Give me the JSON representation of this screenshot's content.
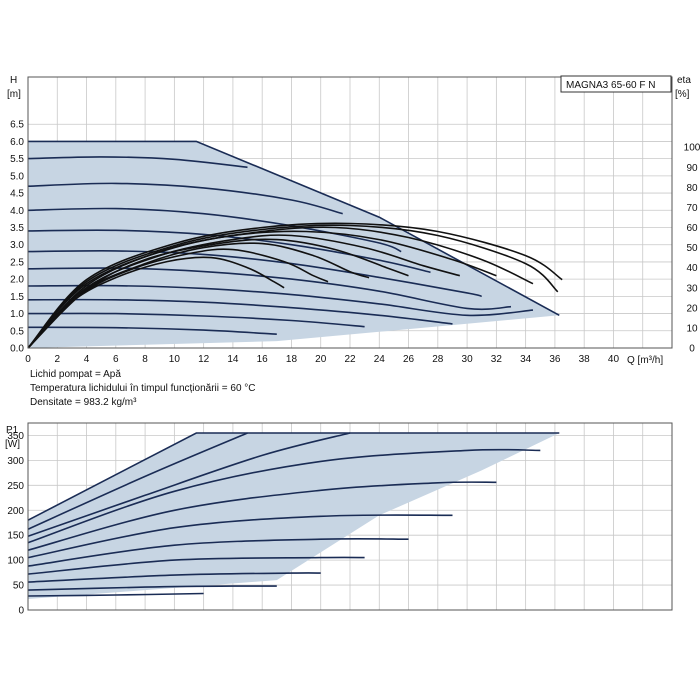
{
  "model_label": "MAGNA3 65-60 F N",
  "notes": [
    "Lichid pompat = Apă",
    "Temperatura lichidului în timpul funcționării = 60 °C",
    "Densitate = 983.2 kg/m³"
  ],
  "colors": {
    "region_fill": "#c7d5e3",
    "curve": "#1a2c55",
    "efficiency_curve": "#111111",
    "grid": "#c8c8c8"
  },
  "chart_data": [
    {
      "type": "line",
      "title": "",
      "xlabel": "Q [m³/h]",
      "ylabel_line1": "H",
      "ylabel_line2": "[m]",
      "y2label_line1": "eta",
      "y2label_line2": "[%]",
      "xlim": [
        0,
        44
      ],
      "ylim": [
        0,
        7.0
      ],
      "y2lim": [
        0,
        120
      ],
      "x_ticks": [
        0,
        2,
        4,
        6,
        8,
        10,
        12,
        14,
        16,
        18,
        20,
        22,
        24,
        26,
        28,
        30,
        32,
        34,
        36,
        38,
        40
      ],
      "x_tick_labels": [
        "0",
        "2",
        "4",
        "6",
        "8",
        "10",
        "12",
        "14",
        "16",
        "18",
        "20",
        "22",
        "24",
        "26",
        "28",
        "30",
        "32",
        "34",
        "36",
        "38",
        "40"
      ],
      "y_ticks": [
        0,
        0.5,
        1.0,
        1.5,
        2.0,
        2.5,
        3.0,
        3.5,
        4.0,
        4.5,
        5.0,
        5.5,
        6.0,
        6.5
      ],
      "y_tick_labels": [
        "0.0",
        "0.5",
        "1.0",
        "1.5",
        "2.0",
        "2.5",
        "3.0",
        "3.5",
        "4.0",
        "4.5",
        "5.0",
        "5.5",
        "6.0",
        "6.5"
      ],
      "y2_ticks": [
        0,
        10,
        20,
        30,
        40,
        50,
        60,
        70,
        80,
        90,
        100
      ],
      "y2_tick_labels": [
        "0",
        "10",
        "20",
        "30",
        "40",
        "50",
        "60",
        "70",
        "80",
        "90",
        "100"
      ],
      "operating_region": [
        [
          0,
          6.0
        ],
        [
          11.5,
          6.0
        ],
        [
          24,
          3.8
        ],
        [
          36.3,
          0.95
        ],
        [
          26,
          0.55
        ],
        [
          17,
          0.2
        ],
        [
          0,
          0
        ]
      ],
      "series": [
        {
          "values": [
            [
              0,
              6.0
            ],
            [
              11.5,
              6.0
            ],
            [
              24,
              3.8
            ],
            [
              36.3,
              0.95
            ]
          ]
        },
        {
          "values": [
            [
              0,
              5.5
            ],
            [
              5,
              5.55
            ],
            [
              10,
              5.48
            ],
            [
              15,
              5.25
            ]
          ]
        },
        {
          "values": [
            [
              0,
              4.7
            ],
            [
              6,
              4.78
            ],
            [
              12,
              4.65
            ],
            [
              18,
              4.3
            ],
            [
              21.5,
              3.9
            ]
          ]
        },
        {
          "values": [
            [
              0,
              4.0
            ],
            [
              6,
              4.05
            ],
            [
              12,
              3.9
            ],
            [
              18,
              3.55
            ],
            [
              24,
              3.05
            ],
            [
              25.5,
              2.8
            ]
          ]
        },
        {
          "values": [
            [
              0,
              3.4
            ],
            [
              6,
              3.42
            ],
            [
              12,
              3.3
            ],
            [
              18,
              3.0
            ],
            [
              24,
              2.55
            ],
            [
              27.5,
              2.2
            ]
          ]
        },
        {
          "values": [
            [
              0,
              2.8
            ],
            [
              6,
              2.82
            ],
            [
              12,
              2.72
            ],
            [
              18,
              2.45
            ],
            [
              24,
              2.05
            ],
            [
              30,
              1.6
            ],
            [
              31,
              1.5
            ]
          ]
        },
        {
          "values": [
            [
              0,
              2.3
            ],
            [
              6,
              2.32
            ],
            [
              12,
              2.22
            ],
            [
              18,
              2.0
            ],
            [
              24,
              1.65
            ],
            [
              30,
              1.15
            ],
            [
              33,
              1.2
            ]
          ]
        },
        {
          "values": [
            [
              0,
              1.8
            ],
            [
              6,
              1.81
            ],
            [
              12,
              1.73
            ],
            [
              18,
              1.55
            ],
            [
              24,
              1.28
            ],
            [
              30,
              0.95
            ],
            [
              34.5,
              1.1
            ]
          ]
        },
        {
          "values": [
            [
              0,
              1.4
            ],
            [
              6,
              1.4
            ],
            [
              12,
              1.33
            ],
            [
              18,
              1.17
            ],
            [
              24,
              0.95
            ],
            [
              29,
              0.7
            ]
          ]
        },
        {
          "values": [
            [
              0,
              1.0
            ],
            [
              6,
              1.0
            ],
            [
              12,
              0.93
            ],
            [
              18,
              0.8
            ],
            [
              23,
              0.62
            ]
          ]
        },
        {
          "values": [
            [
              0,
              0.6
            ],
            [
              6,
              0.59
            ],
            [
              12,
              0.52
            ],
            [
              17,
              0.4
            ]
          ]
        }
      ],
      "efficiency_series": [
        {
          "values": [
            [
              0,
              0
            ],
            [
              4,
              34
            ],
            [
              10,
              52
            ],
            [
              16,
              60
            ],
            [
              22,
              62
            ],
            [
              28,
              58
            ],
            [
              34,
              46
            ],
            [
              36.5,
              34
            ]
          ]
        },
        {
          "values": [
            [
              0,
              0
            ],
            [
              4,
              33
            ],
            [
              10,
              51
            ],
            [
              16,
              59
            ],
            [
              22,
              61
            ],
            [
              28,
              56
            ],
            [
              34,
              42
            ],
            [
              36.2,
              28
            ]
          ]
        },
        {
          "values": [
            [
              0,
              0
            ],
            [
              4,
              32
            ],
            [
              10,
              50
            ],
            [
              16,
              58
            ],
            [
              21,
              60
            ],
            [
              26,
              55
            ],
            [
              31,
              44
            ],
            [
              34.5,
              32
            ]
          ]
        },
        {
          "values": [
            [
              0,
              0
            ],
            [
              4,
              31
            ],
            [
              9,
              48
            ],
            [
              14,
              56
            ],
            [
              19,
              58
            ],
            [
              24,
              54
            ],
            [
              29,
              44
            ],
            [
              32,
              36
            ]
          ]
        },
        {
          "values": [
            [
              0,
              0
            ],
            [
              4,
              30
            ],
            [
              9,
              46
            ],
            [
              14,
              54
            ],
            [
              18,
              56
            ],
            [
              23,
              50
            ],
            [
              27,
              41
            ],
            [
              29.5,
              36
            ]
          ]
        },
        {
          "values": [
            [
              0,
              0
            ],
            [
              4,
              29
            ],
            [
              8,
              44
            ],
            [
              13,
              52
            ],
            [
              17,
              54
            ],
            [
              21,
              49
            ],
            [
              24.5,
              40
            ],
            [
              26,
              36
            ]
          ]
        },
        {
          "values": [
            [
              0,
              0
            ],
            [
              3.5,
              27
            ],
            [
              8,
              42
            ],
            [
              12,
              50
            ],
            [
              16,
              52
            ],
            [
              19.5,
              46
            ],
            [
              22,
              38
            ],
            [
              23.3,
              35
            ]
          ]
        },
        {
          "values": [
            [
              0,
              0
            ],
            [
              3.5,
              26
            ],
            [
              7,
              39
            ],
            [
              11,
              47
            ],
            [
              14,
              49
            ],
            [
              17.5,
              43
            ],
            [
              19.5,
              36
            ],
            [
              20.5,
              33
            ]
          ]
        },
        {
          "values": [
            [
              0,
              0
            ],
            [
              3,
              23
            ],
            [
              6,
              35
            ],
            [
              9.5,
              43
            ],
            [
              12.5,
              45
            ],
            [
              15,
              40
            ],
            [
              16.8,
              33
            ],
            [
              17.5,
              30
            ]
          ]
        }
      ]
    },
    {
      "type": "line",
      "title": "",
      "xlabel": "",
      "ylabel_line1": "P1",
      "ylabel_line2": "[W]",
      "xlim": [
        0,
        44
      ],
      "ylim": [
        0,
        375
      ],
      "y_ticks": [
        0,
        50,
        100,
        150,
        200,
        250,
        300,
        350
      ],
      "y_tick_labels": [
        "0",
        "50",
        "100",
        "150",
        "200",
        "250",
        "300",
        "350"
      ],
      "operating_region": [
        [
          0,
          180
        ],
        [
          11.5,
          355
        ],
        [
          36.3,
          355
        ],
        [
          31,
          280
        ],
        [
          24,
          190
        ],
        [
          17,
          60
        ],
        [
          0,
          22
        ]
      ],
      "series": [
        {
          "values": [
            [
              0,
              180
            ],
            [
              11.5,
              355
            ],
            [
              36.3,
              355
            ]
          ]
        },
        {
          "values": [
            [
              0,
              162
            ],
            [
              8,
              268
            ],
            [
              15,
              355
            ]
          ]
        },
        {
          "values": [
            [
              0,
              148
            ],
            [
              8,
              230
            ],
            [
              16,
              310
            ],
            [
              22,
              355
            ]
          ]
        },
        {
          "values": [
            [
              0,
              135
            ],
            [
              10,
              238
            ],
            [
              20,
              298
            ],
            [
              30,
              320
            ],
            [
              35,
              320
            ]
          ]
        },
        {
          "values": [
            [
              0,
              120
            ],
            [
              10,
              200
            ],
            [
              20,
              240
            ],
            [
              28,
              255
            ],
            [
              32,
              256
            ]
          ]
        },
        {
          "values": [
            [
              0,
              105
            ],
            [
              10,
              165
            ],
            [
              20,
              188
            ],
            [
              29,
              190
            ]
          ]
        },
        {
          "values": [
            [
              0,
              88
            ],
            [
              10,
              130
            ],
            [
              20,
              142
            ],
            [
              26,
              142
            ]
          ]
        },
        {
          "values": [
            [
              0,
              72
            ],
            [
              10,
              100
            ],
            [
              20,
              105
            ],
            [
              23,
              105
            ]
          ]
        },
        {
          "values": [
            [
              0,
              56
            ],
            [
              10,
              70
            ],
            [
              18,
              74
            ],
            [
              20,
              74
            ]
          ]
        },
        {
          "values": [
            [
              0,
              40
            ],
            [
              8,
              46
            ],
            [
              14,
              48
            ],
            [
              17,
              48
            ]
          ]
        },
        {
          "values": [
            [
              0,
              28
            ],
            [
              6,
              30
            ],
            [
              12,
              33
            ]
          ]
        }
      ]
    }
  ]
}
